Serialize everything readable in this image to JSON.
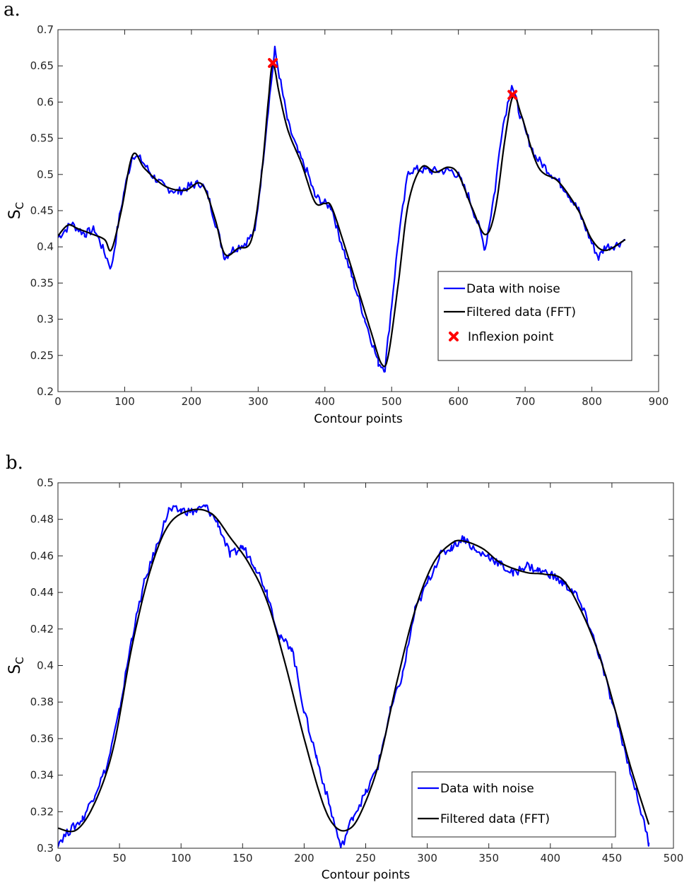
{
  "chart_data": [
    {
      "panel_label": "a.",
      "type": "line",
      "xlabel": "Contour points",
      "ylabel": "S",
      "ylabel_subscript": "C",
      "xlim": [
        0,
        900
      ],
      "ylim": [
        0.2,
        0.7
      ],
      "xticks": [
        0,
        100,
        200,
        300,
        400,
        500,
        600,
        700,
        800,
        900
      ],
      "yticks": [
        0.2,
        0.25,
        0.3,
        0.35,
        0.4,
        0.45,
        0.5,
        0.55,
        0.6,
        0.65,
        0.7
      ],
      "ytick_labels": [
        "0.2",
        "0.25",
        "0.3",
        "0.35",
        "0.4",
        "0.45",
        "0.5",
        "0.55",
        "0.6",
        "0.65",
        "0.7"
      ],
      "grid": false,
      "legend_position": "bottom-right",
      "series": [
        {
          "name": "Data with noise",
          "color": "#0000ff",
          "style": "noisy-line",
          "x": [
            0,
            20,
            40,
            55,
            65,
            80,
            90,
            100,
            112,
            125,
            140,
            160,
            180,
            200,
            215,
            225,
            240,
            250,
            260,
            280,
            295,
            305,
            315,
            325,
            335,
            345,
            360,
            375,
            385,
            400,
            410,
            420,
            440,
            460,
            480,
            490,
            500,
            510,
            525,
            540,
            560,
            590,
            600,
            615,
            630,
            640,
            655,
            665,
            680,
            690,
            700,
            715,
            740,
            760,
            780,
            800,
            810,
            820,
            835,
            850
          ],
          "y": [
            0.413,
            0.432,
            0.418,
            0.424,
            0.402,
            0.37,
            0.43,
            0.48,
            0.528,
            0.52,
            0.5,
            0.482,
            0.476,
            0.485,
            0.488,
            0.47,
            0.42,
            0.385,
            0.395,
            0.405,
            0.42,
            0.5,
            0.59,
            0.672,
            0.62,
            0.57,
            0.53,
            0.5,
            0.47,
            0.46,
            0.455,
            0.42,
            0.36,
            0.3,
            0.24,
            0.232,
            0.32,
            0.41,
            0.505,
            0.507,
            0.505,
            0.505,
            0.498,
            0.47,
            0.43,
            0.397,
            0.48,
            0.56,
            0.625,
            0.59,
            0.56,
            0.525,
            0.5,
            0.48,
            0.45,
            0.405,
            0.385,
            0.4,
            0.402,
            0.41
          ]
        },
        {
          "name": "Filtered data (FFT)",
          "color": "#000000",
          "style": "smooth-line",
          "x": [
            0,
            15,
            30,
            50,
            70,
            80,
            95,
            112,
            130,
            160,
            190,
            215,
            235,
            250,
            270,
            290,
            305,
            315,
            322,
            332,
            345,
            365,
            385,
            400,
            410,
            430,
            450,
            470,
            485,
            495,
            510,
            525,
            545,
            565,
            585,
            600,
            620,
            640,
            655,
            670,
            682,
            695,
            720,
            750,
            780,
            800,
            820,
            850
          ],
          "y": [
            0.415,
            0.43,
            0.425,
            0.418,
            0.41,
            0.396,
            0.45,
            0.527,
            0.508,
            0.484,
            0.478,
            0.487,
            0.44,
            0.39,
            0.398,
            0.41,
            0.5,
            0.6,
            0.653,
            0.61,
            0.56,
            0.515,
            0.462,
            0.46,
            0.455,
            0.4,
            0.34,
            0.28,
            0.238,
            0.25,
            0.35,
            0.46,
            0.51,
            0.503,
            0.51,
            0.5,
            0.455,
            0.417,
            0.45,
            0.55,
            0.608,
            0.58,
            0.51,
            0.49,
            0.45,
            0.41,
            0.395,
            0.41
          ]
        },
        {
          "name": "Inflexion point",
          "color": "#ff0000",
          "style": "x-markers",
          "x": [
            322,
            681
          ],
          "y": [
            0.654,
            0.61
          ]
        }
      ]
    },
    {
      "panel_label": "b.",
      "type": "line",
      "xlabel": "Contour points",
      "ylabel": "S",
      "ylabel_subscript": "C",
      "xlim": [
        0,
        500
      ],
      "ylim": [
        0.3,
        0.5
      ],
      "xticks": [
        0,
        50,
        100,
        150,
        200,
        250,
        300,
        350,
        400,
        450,
        500
      ],
      "yticks": [
        0.3,
        0.32,
        0.34,
        0.36,
        0.38,
        0.4,
        0.42,
        0.44,
        0.46,
        0.48,
        0.5
      ],
      "ytick_labels": [
        "0.3",
        "0.32",
        "0.34",
        "0.36",
        "0.38",
        "0.4",
        "0.42",
        "0.44",
        "0.46",
        "0.48",
        "0.5"
      ],
      "grid": false,
      "legend_position": "bottom-right",
      "series": [
        {
          "name": "Data with noise",
          "color": "#0000ff",
          "style": "noisy-line",
          "x": [
            0,
            10,
            20,
            30,
            40,
            50,
            60,
            70,
            80,
            90,
            100,
            110,
            120,
            130,
            140,
            150,
            160,
            170,
            180,
            190,
            200,
            210,
            220,
            230,
            240,
            250,
            260,
            270,
            280,
            290,
            300,
            310,
            320,
            330,
            340,
            350,
            360,
            370,
            380,
            390,
            400,
            410,
            420,
            430,
            440,
            450,
            460,
            470,
            480
          ],
          "y": [
            0.303,
            0.31,
            0.316,
            0.33,
            0.345,
            0.375,
            0.415,
            0.445,
            0.465,
            0.485,
            0.485,
            0.484,
            0.487,
            0.478,
            0.46,
            0.465,
            0.455,
            0.44,
            0.415,
            0.41,
            0.375,
            0.35,
            0.325,
            0.3,
            0.318,
            0.33,
            0.345,
            0.375,
            0.395,
            0.43,
            0.445,
            0.46,
            0.465,
            0.47,
            0.462,
            0.46,
            0.455,
            0.45,
            0.455,
            0.452,
            0.45,
            0.445,
            0.44,
            0.425,
            0.405,
            0.38,
            0.355,
            0.33,
            0.303
          ]
        },
        {
          "name": "Filtered data (FFT)",
          "color": "#000000",
          "style": "smooth-line",
          "x": [
            0,
            15,
            30,
            45,
            60,
            75,
            90,
            108,
            125,
            140,
            155,
            170,
            185,
            200,
            215,
            225,
            235,
            245,
            260,
            275,
            290,
            305,
            320,
            330,
            345,
            360,
            380,
            395,
            410,
            425,
            440,
            455,
            465,
            480
          ],
          "y": [
            0.311,
            0.31,
            0.325,
            0.355,
            0.41,
            0.452,
            0.477,
            0.485,
            0.483,
            0.47,
            0.456,
            0.435,
            0.4,
            0.36,
            0.325,
            0.312,
            0.31,
            0.318,
            0.345,
            0.39,
            0.43,
            0.456,
            0.467,
            0.468,
            0.464,
            0.456,
            0.451,
            0.45,
            0.447,
            0.43,
            0.405,
            0.37,
            0.345,
            0.313
          ]
        }
      ]
    }
  ]
}
